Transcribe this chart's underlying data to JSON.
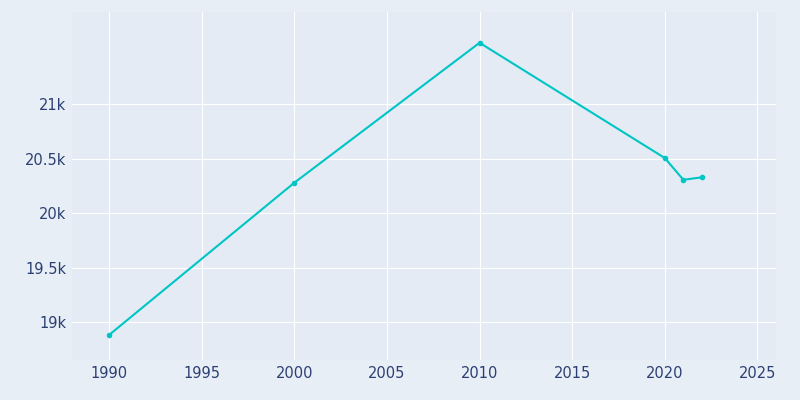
{
  "years": [
    1990,
    2000,
    2010,
    2020,
    2021,
    2022
  ],
  "population": [
    18880,
    20280,
    21567,
    20507,
    20307,
    20330
  ],
  "line_color": "#00C5C5",
  "marker": "o",
  "marker_size": 3,
  "line_width": 1.5,
  "fig_bg_color": "#E8EEF6",
  "plot_bg_color": "#E4EBF5",
  "xlim": [
    1988,
    2026
  ],
  "ylim": [
    18650,
    21850
  ],
  "xticks": [
    1990,
    1995,
    2000,
    2005,
    2010,
    2015,
    2020,
    2025
  ],
  "ytick_values": [
    19000,
    19500,
    20000,
    20500,
    21000
  ],
  "ytick_labels": [
    "19k",
    "19.5k",
    "20k",
    "20.5k",
    "21k"
  ],
  "grid_color": "#FFFFFF",
  "tick_label_color": "#2B3F72",
  "tick_label_fontsize": 10.5,
  "grid_linewidth": 0.8
}
